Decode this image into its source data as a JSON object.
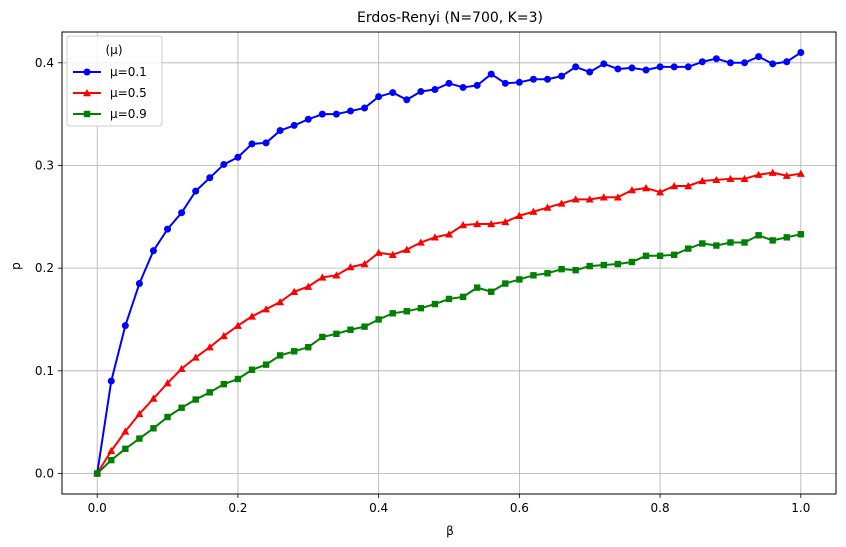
{
  "chart_data": {
    "type": "line",
    "title": "Erdos-Renyi (N=700, K=3)",
    "xlabel": "β",
    "ylabel": "p",
    "xlim": [
      -0.05,
      1.05
    ],
    "ylim": [
      -0.02,
      0.43
    ],
    "xticks": [
      0.0,
      0.2,
      0.4,
      0.6,
      0.8,
      1.0
    ],
    "xtick_labels": [
      "0.0",
      "0.2",
      "0.4",
      "0.6",
      "0.8",
      "1.0"
    ],
    "yticks": [
      0.0,
      0.1,
      0.2,
      0.3,
      0.4
    ],
    "ytick_labels": [
      "0.0",
      "0.1",
      "0.2",
      "0.3",
      "0.4"
    ],
    "grid": true,
    "legend": {
      "title": "(μ)",
      "placement": "top-left"
    },
    "x": [
      0.0,
      0.02,
      0.04,
      0.06,
      0.08,
      0.1,
      0.12,
      0.14,
      0.16,
      0.18,
      0.2,
      0.22,
      0.24,
      0.26,
      0.28,
      0.3,
      0.32,
      0.34,
      0.36,
      0.38,
      0.4,
      0.42,
      0.44,
      0.46,
      0.48,
      0.5,
      0.52,
      0.54,
      0.56,
      0.58,
      0.6,
      0.62,
      0.64,
      0.66,
      0.68,
      0.7,
      0.72,
      0.74,
      0.76,
      0.78,
      0.8,
      0.82,
      0.84,
      0.86,
      0.88,
      0.9,
      0.92,
      0.94,
      0.96,
      0.98,
      1.0
    ],
    "series": [
      {
        "name": "μ=0.1",
        "color": "#0000ff",
        "marker": "circle",
        "values": [
          0.0,
          0.09,
          0.144,
          0.185,
          0.217,
          0.238,
          0.254,
          0.275,
          0.288,
          0.301,
          0.308,
          0.321,
          0.322,
          0.334,
          0.339,
          0.345,
          0.35,
          0.35,
          0.353,
          0.356,
          0.367,
          0.371,
          0.364,
          0.372,
          0.374,
          0.38,
          0.376,
          0.378,
          0.389,
          0.38,
          0.381,
          0.384,
          0.384,
          0.387,
          0.396,
          0.391,
          0.399,
          0.394,
          0.395,
          0.393,
          0.396,
          0.396,
          0.396,
          0.401,
          0.404,
          0.4,
          0.4,
          0.406,
          0.399,
          0.401,
          0.41
        ]
      },
      {
        "name": "μ=0.5",
        "color": "#ff0000",
        "marker": "triangle",
        "values": [
          0.0,
          0.022,
          0.041,
          0.058,
          0.073,
          0.088,
          0.102,
          0.113,
          0.123,
          0.134,
          0.144,
          0.153,
          0.16,
          0.167,
          0.177,
          0.182,
          0.191,
          0.193,
          0.201,
          0.204,
          0.215,
          0.213,
          0.218,
          0.225,
          0.23,
          0.233,
          0.242,
          0.243,
          0.243,
          0.245,
          0.251,
          0.255,
          0.259,
          0.263,
          0.267,
          0.267,
          0.269,
          0.269,
          0.276,
          0.278,
          0.274,
          0.28,
          0.28,
          0.285,
          0.286,
          0.287,
          0.287,
          0.291,
          0.293,
          0.29,
          0.292
        ]
      },
      {
        "name": "μ=0.9",
        "color": "#008000",
        "marker": "square",
        "values": [
          0.0,
          0.013,
          0.024,
          0.034,
          0.044,
          0.055,
          0.064,
          0.072,
          0.079,
          0.087,
          0.092,
          0.101,
          0.106,
          0.115,
          0.119,
          0.123,
          0.133,
          0.136,
          0.14,
          0.143,
          0.15,
          0.156,
          0.158,
          0.161,
          0.165,
          0.17,
          0.172,
          0.181,
          0.177,
          0.185,
          0.189,
          0.193,
          0.195,
          0.199,
          0.198,
          0.202,
          0.203,
          0.204,
          0.206,
          0.212,
          0.212,
          0.213,
          0.219,
          0.224,
          0.222,
          0.225,
          0.225,
          0.232,
          0.227,
          0.23,
          0.233
        ]
      }
    ]
  }
}
